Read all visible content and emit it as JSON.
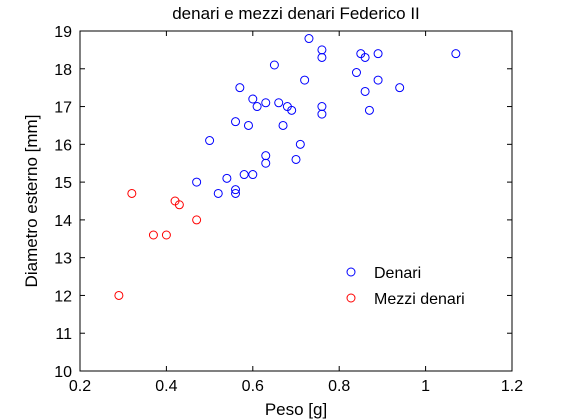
{
  "chart_data": {
    "type": "scatter",
    "title": "denari e mezzi denari Federico II",
    "xlabel": "Peso [g]",
    "ylabel": "Diametro esterno [mm]",
    "xlim": [
      0.2,
      1.2
    ],
    "ylim": [
      10,
      19
    ],
    "xticks": [
      "0.2",
      "0.4",
      "0.6",
      "0.8",
      "1",
      "1.2"
    ],
    "yticks": [
      "10",
      "11",
      "12",
      "13",
      "14",
      "15",
      "16",
      "17",
      "18",
      "19"
    ],
    "grid": false,
    "legend_position": "lower-right",
    "series": [
      {
        "name": "Denari",
        "color": "#0000ff",
        "marker": "circle-open",
        "points": [
          [
            0.73,
            18.8
          ],
          [
            0.76,
            18.5
          ],
          [
            0.76,
            18.3
          ],
          [
            0.85,
            18.4
          ],
          [
            0.86,
            18.3
          ],
          [
            0.89,
            18.4
          ],
          [
            1.07,
            18.4
          ],
          [
            0.65,
            18.1
          ],
          [
            0.84,
            17.9
          ],
          [
            0.72,
            17.7
          ],
          [
            0.89,
            17.7
          ],
          [
            0.57,
            17.5
          ],
          [
            0.94,
            17.5
          ],
          [
            0.86,
            17.4
          ],
          [
            0.6,
            17.2
          ],
          [
            0.63,
            17.1
          ],
          [
            0.66,
            17.1
          ],
          [
            0.61,
            17.0
          ],
          [
            0.68,
            17.0
          ],
          [
            0.76,
            17.0
          ],
          [
            0.69,
            16.9
          ],
          [
            0.87,
            16.9
          ],
          [
            0.76,
            16.8
          ],
          [
            0.56,
            16.6
          ],
          [
            0.59,
            16.5
          ],
          [
            0.67,
            16.5
          ],
          [
            0.5,
            16.1
          ],
          [
            0.71,
            16.0
          ],
          [
            0.63,
            15.7
          ],
          [
            0.7,
            15.6
          ],
          [
            0.63,
            15.5
          ],
          [
            0.58,
            15.2
          ],
          [
            0.6,
            15.2
          ],
          [
            0.54,
            15.1
          ],
          [
            0.47,
            15.0
          ],
          [
            0.56,
            14.8
          ],
          [
            0.52,
            14.7
          ],
          [
            0.56,
            14.7
          ]
        ]
      },
      {
        "name": "Mezzi denari",
        "color": "#ff0000",
        "marker": "circle-open",
        "points": [
          [
            0.32,
            14.7
          ],
          [
            0.42,
            14.5
          ],
          [
            0.43,
            14.4
          ],
          [
            0.47,
            14.0
          ],
          [
            0.37,
            13.6
          ],
          [
            0.4,
            13.6
          ],
          [
            0.29,
            12.0
          ]
        ]
      }
    ]
  }
}
